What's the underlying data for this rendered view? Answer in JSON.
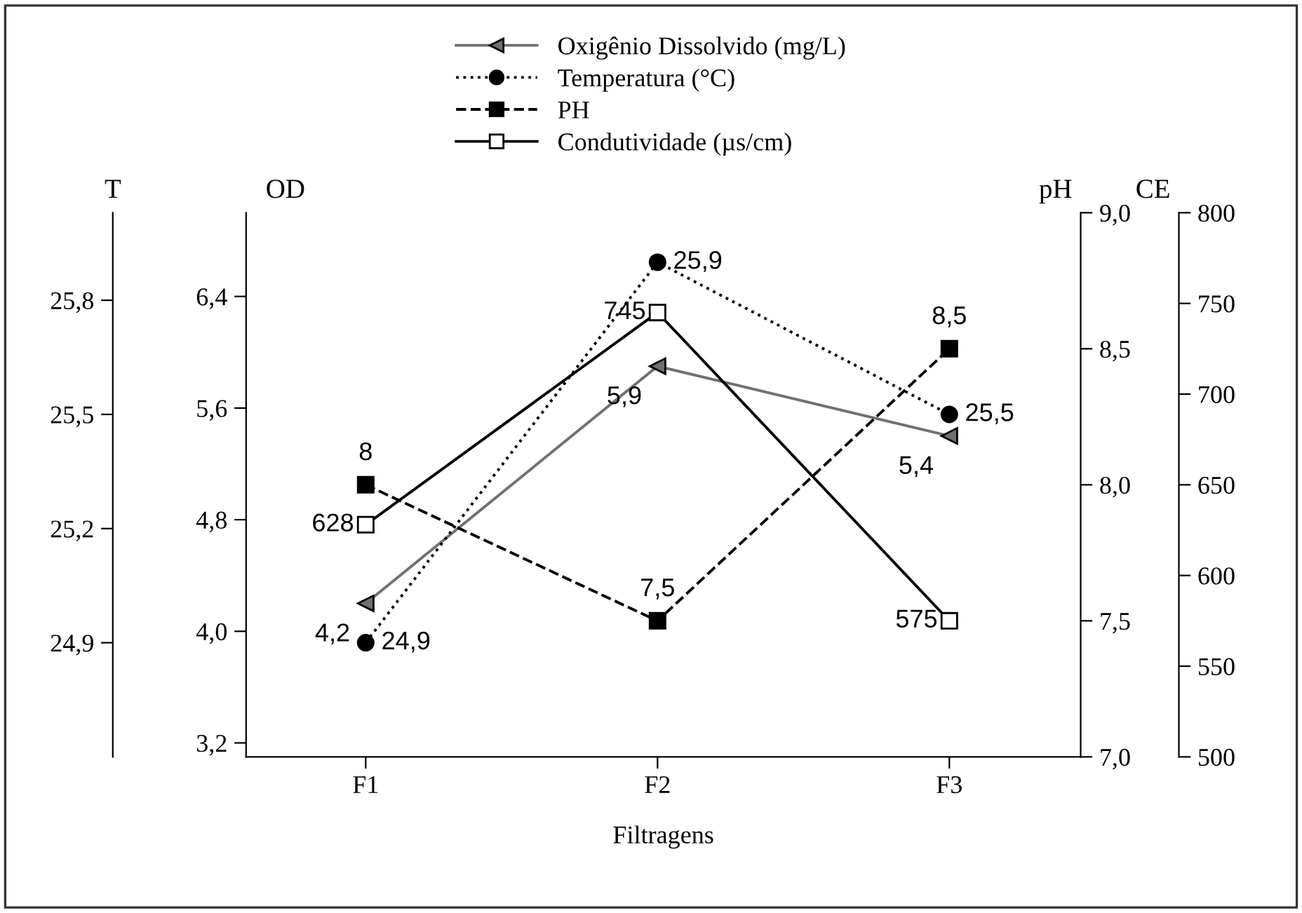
{
  "chart_data": [
    {
      "type": "line",
      "xlabel": "Filtragens",
      "ylabel": "OD",
      "y2label": "T",
      "y3label": "pH",
      "categories": [
        "F1",
        "F2",
        "F3"
      ],
      "series": [
        {
          "name": "Oxigênio Dissolvido (mg/L)",
          "color": "#707070",
          "axis": "y",
          "marker": "triangle",
          "line_style": "solid",
          "values": [
            4.2,
            5.9,
            5.4
          ],
          "value_labels": [
            "4,2",
            "5,9",
            "5,4"
          ]
        },
        {
          "name": "Temperatura (°C)",
          "color": "#000000",
          "axis": "y2",
          "marker": "circle",
          "line_style": "dotted",
          "values": [
            24.9,
            25.9,
            25.5
          ],
          "value_labels": [
            "24,9",
            "25,9",
            "25,5"
          ]
        },
        {
          "name": "PH",
          "color": "#000000",
          "axis": "y3",
          "marker": "square",
          "line_style": "dashed",
          "values": [
            8,
            7.5,
            8.5
          ],
          "value_labels": [
            "8",
            "7,5",
            "8,5"
          ]
        }
      ],
      "ylim": [
        3.1,
        7.0
      ],
      "yticks": [
        {
          "value": 3.2,
          "label": "3,2"
        },
        {
          "value": 4.0,
          "label": "4,0"
        },
        {
          "value": 4.8,
          "label": "4,8"
        },
        {
          "value": 5.6,
          "label": "5,6"
        },
        {
          "value": 6.4,
          "label": "6,4"
        }
      ],
      "y2lim": [
        24.6,
        26.03
      ],
      "y2ticks": [
        {
          "value": 24.9,
          "label": "24,9"
        },
        {
          "value": 25.2,
          "label": "25,2"
        },
        {
          "value": 25.5,
          "label": "25,5"
        },
        {
          "value": 25.8,
          "label": "25,8"
        }
      ],
      "y3lim": [
        7.0,
        9.0
      ],
      "y3ticks": [
        {
          "value": 7.0,
          "label": "7,0"
        },
        {
          "value": 7.5,
          "label": "7,5"
        },
        {
          "value": 8.0,
          "label": "8,0"
        },
        {
          "value": 8.5,
          "label": "8,5"
        },
        {
          "value": 9.0,
          "label": "9,0"
        }
      ],
      "legend": "top"
    },
    {
      "type": "line",
      "ylabel": "CE",
      "categories": [
        null,
        null,
        null
      ],
      "tick_labels": "y",
      "series": [
        {
          "name": "Condutividade (µs/cm)",
          "color": "#000000",
          "axis": "y",
          "marker": "square",
          "line_style": "solid",
          "values": [
            628,
            745,
            575
          ],
          "value_labels": [
            "628",
            "745",
            "575"
          ]
        }
      ],
      "ylim": [
        500,
        800
      ],
      "yticks": [
        500,
        550,
        600,
        650,
        700,
        750,
        800
      ],
      "legend": "top"
    }
  ]
}
